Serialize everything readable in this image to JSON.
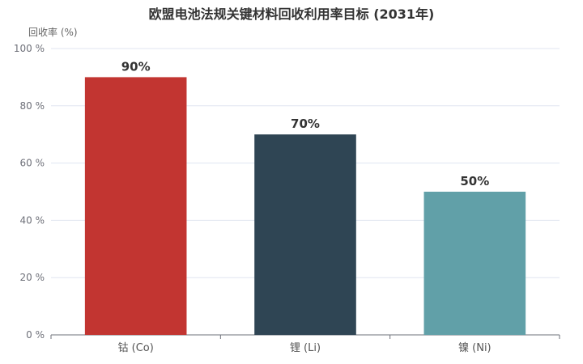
{
  "chart_data": {
    "type": "bar",
    "title": "欧盟电池法规关键材料回收利用率目标 (2031年)",
    "ylabel": "回收率 (%)",
    "xlabel": "",
    "categories": [
      "钴 (Co)",
      "锂 (Li)",
      "镍 (Ni)"
    ],
    "values": [
      90,
      70,
      50
    ],
    "value_labels": [
      "90%",
      "70%",
      "50%"
    ],
    "colors": [
      "#c23531",
      "#2f4554",
      "#61a0a8"
    ],
    "ylim": [
      0,
      100
    ],
    "yticks": [
      0,
      20,
      40,
      60,
      80,
      100
    ],
    "ytick_labels": [
      "0 %",
      "20 %",
      "40 %",
      "60 %",
      "80 %",
      "100 %"
    ],
    "grid": true,
    "legend": "none"
  }
}
